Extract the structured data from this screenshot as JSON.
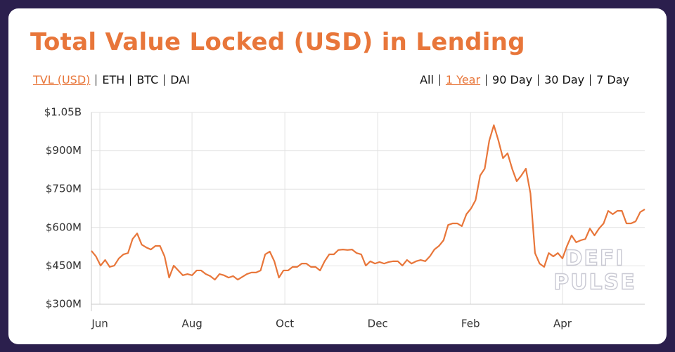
{
  "header": {
    "title": "Total Value Locked (USD) in Lending"
  },
  "tabs_left": [
    {
      "label": "TVL (USD)",
      "active": true
    },
    {
      "label": "ETH",
      "active": false
    },
    {
      "label": "BTC",
      "active": false
    },
    {
      "label": "DAI",
      "active": false
    }
  ],
  "tabs_right": [
    {
      "label": "All",
      "active": false
    },
    {
      "label": "1 Year",
      "active": true
    },
    {
      "label": "90 Day",
      "active": false
    },
    {
      "label": "30 Day",
      "active": false
    },
    {
      "label": "7 Day",
      "active": false
    }
  ],
  "chart_data": {
    "type": "line",
    "color": "#e8763a",
    "grid": true,
    "watermark": [
      "DEFI",
      "PULSE"
    ],
    "xlim": [
      0,
      121
    ],
    "xticks": [
      {
        "value": 1.85,
        "label": "Jun"
      },
      {
        "value": 22,
        "label": "Aug"
      },
      {
        "value": 42.3,
        "label": "Oct"
      },
      {
        "value": 62.6,
        "label": "Dec"
      },
      {
        "value": 82.9,
        "label": "Feb"
      },
      {
        "value": 103,
        "label": "Apr"
      }
    ],
    "ylim": [
      300000000,
      1050000000
    ],
    "yticks": [
      {
        "value": 300000000,
        "label": "$300M"
      },
      {
        "value": 450000000,
        "label": "$450M"
      },
      {
        "value": 600000000,
        "label": "$600M"
      },
      {
        "value": 750000000,
        "label": "$750M"
      },
      {
        "value": 900000000,
        "label": "$900M"
      },
      {
        "value": 1050000000,
        "label": "$1.05B"
      }
    ],
    "values": [
      509000000,
      487000000,
      451000000,
      473000000,
      446000000,
      451000000,
      479000000,
      495000000,
      500000000,
      555000000,
      577000000,
      533000000,
      522000000,
      514000000,
      528000000,
      528000000,
      487000000,
      404000000,
      451000000,
      432000000,
      413000000,
      418000000,
      413000000,
      432000000,
      432000000,
      418000000,
      410000000,
      396000000,
      418000000,
      413000000,
      404000000,
      410000000,
      396000000,
      407000000,
      418000000,
      424000000,
      424000000,
      432000000,
      495000000,
      506000000,
      468000000,
      404000000,
      432000000,
      432000000,
      446000000,
      446000000,
      459000000,
      459000000,
      446000000,
      446000000,
      432000000,
      468000000,
      495000000,
      495000000,
      512000000,
      514000000,
      512000000,
      514000000,
      500000000,
      495000000,
      451000000,
      468000000,
      459000000,
      465000000,
      459000000,
      465000000,
      468000000,
      468000000,
      451000000,
      473000000,
      459000000,
      468000000,
      473000000,
      468000000,
      487000000,
      514000000,
      528000000,
      550000000,
      610000000,
      616000000,
      616000000,
      605000000,
      652000000,
      674000000,
      707000000,
      803000000,
      830000000,
      940000000,
      1000000000,
      940000000,
      871000000,
      890000000,
      830000000,
      781000000,
      803000000,
      830000000,
      734000000,
      500000000,
      459000000,
      446000000,
      500000000,
      487000000,
      500000000,
      479000000,
      528000000,
      569000000,
      542000000,
      550000000,
      555000000,
      596000000,
      569000000,
      596000000,
      616000000,
      665000000,
      652000000,
      665000000,
      665000000,
      616000000,
      616000000,
      624000000,
      660000000,
      671000000
    ]
  }
}
